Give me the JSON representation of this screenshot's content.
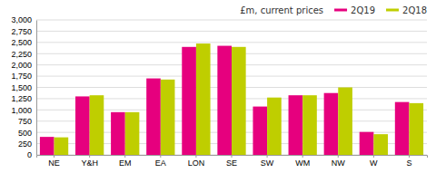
{
  "chart_data": {
    "type": "bar",
    "legend_title": "£m, current prices",
    "categories": [
      "NE",
      "Y&H",
      "EM",
      "EA",
      "LON",
      "SE",
      "SW",
      "WM",
      "NW",
      "W",
      "S"
    ],
    "series": [
      {
        "name": "2Q19",
        "color": "#e6007e",
        "values": [
          400,
          1300,
          950,
          1700,
          2400,
          2425,
          1075,
          1325,
          1375,
          510,
          1175
        ]
      },
      {
        "name": "2Q18",
        "color": "#bfce00",
        "values": [
          390,
          1325,
          950,
          1675,
          2475,
          2400,
          1275,
          1325,
          1500,
          460,
          1150
        ]
      }
    ],
    "ylim": [
      0,
      3000
    ],
    "yticks": [
      0,
      250,
      500,
      750,
      {
        "value": 1000,
        "label": "1,000"
      },
      {
        "value": 1250,
        "label": "1,250"
      },
      {
        "value": 1500,
        "label": "1,500"
      },
      {
        "value": 1750,
        "label": "1,750"
      },
      {
        "value": 2000,
        "label": "2,000"
      },
      {
        "value": 2250,
        "label": "2,250"
      },
      {
        "value": 2500,
        "label": "2,500"
      },
      {
        "value": 2750,
        "label": "2,750"
      },
      {
        "value": 3000,
        "label": "3,000"
      }
    ],
    "grid": true,
    "legend": "upper right"
  }
}
